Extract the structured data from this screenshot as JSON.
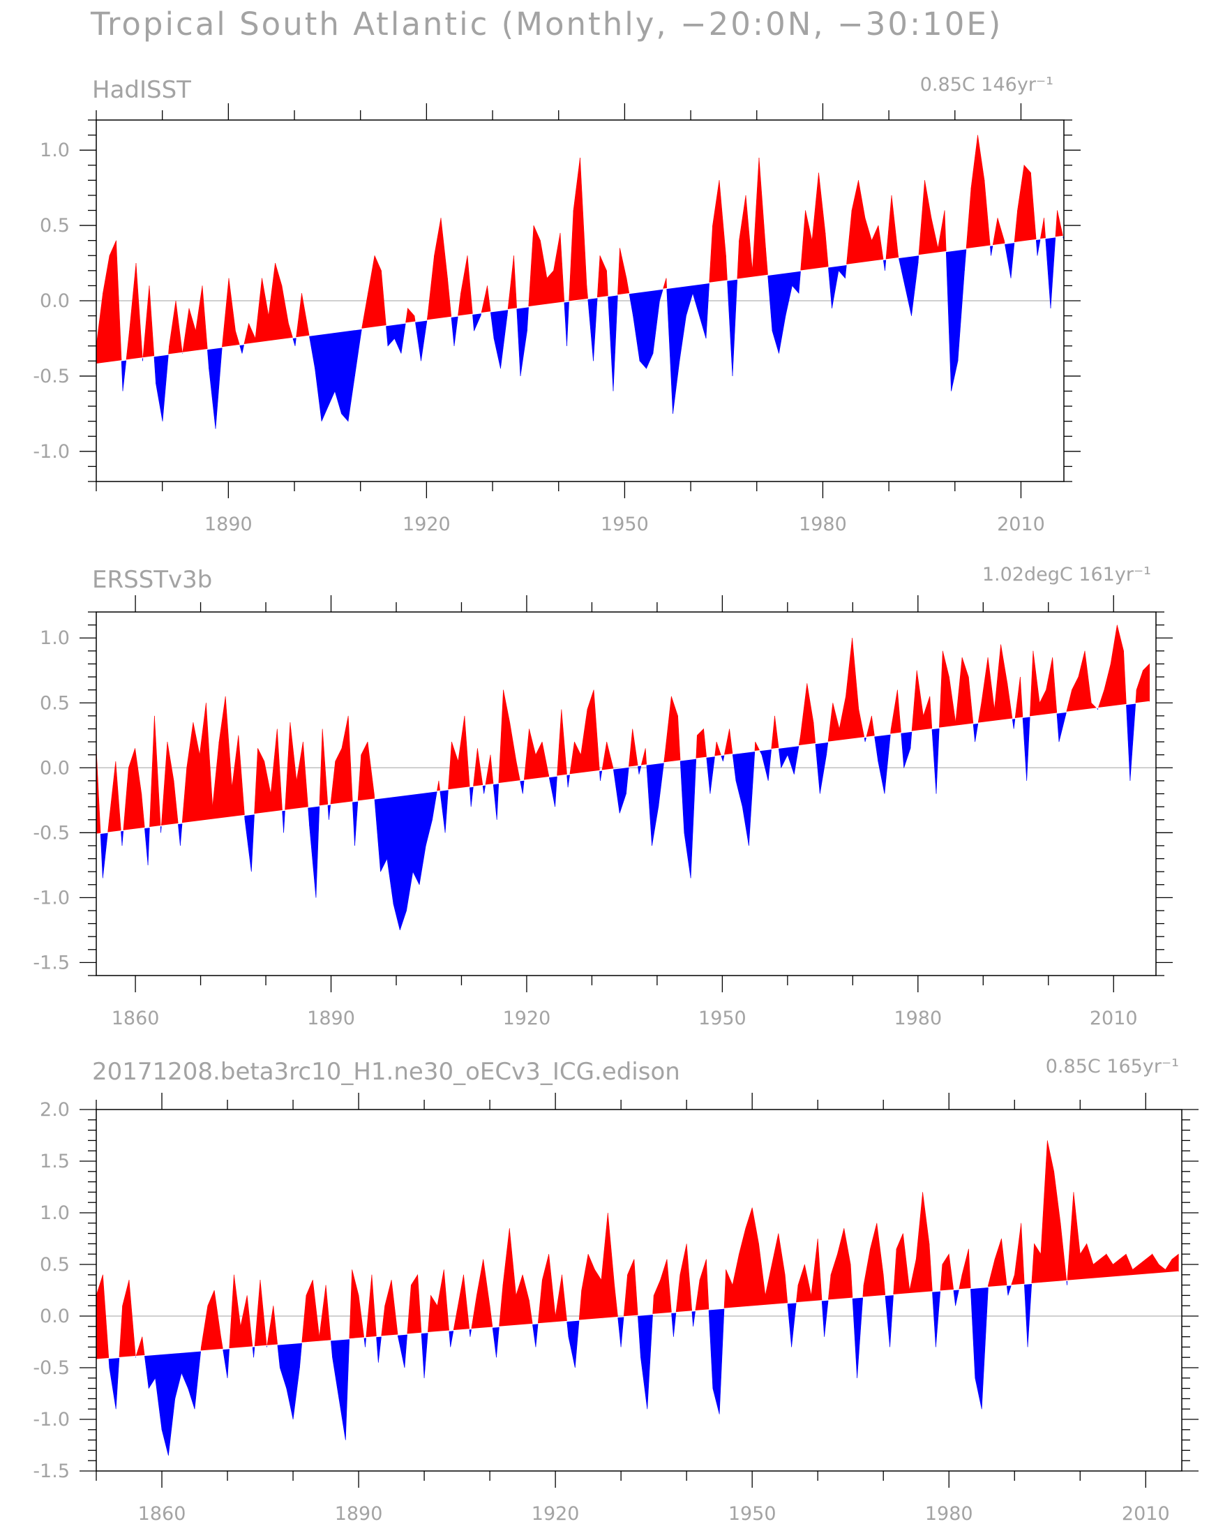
{
  "figure": {
    "title": "Tropical South Atlantic (Monthly, −20:0N, −30:10E)"
  },
  "colors": {
    "positive": "#ff0000",
    "negative": "#0000ff",
    "text": "#a3a3a3",
    "frame": "#000000",
    "zero_line": "#c0c0c0"
  },
  "chart_data": [
    {
      "type": "area",
      "title": "HadISST",
      "annotation": "0.85C 146yr⁻¹",
      "xlabel": "",
      "ylabel": "",
      "xlim": [
        1870,
        2016.5
      ],
      "ylim": [
        -1.2,
        1.2
      ],
      "xticks": [
        1890,
        1920,
        1950,
        1980,
        2010
      ],
      "yticks": [
        1.0,
        0.5,
        0.0,
        -0.5,
        -1.0
      ],
      "ytick_labels": [
        "1.0",
        "0.5",
        "0.0",
        "-0.5",
        "-1.0"
      ],
      "trend": {
        "start": [
          1870,
          -0.42
        ],
        "end": [
          2016.5,
          0.43
        ]
      },
      "series_x_range": [
        1870,
        2016.5
      ],
      "anomaly_series": {
        "name": "monthly SST anomaly",
        "step_years": 1,
        "values": [
          -0.3,
          0.05,
          0.3,
          0.4,
          -0.6,
          -0.2,
          0.25,
          -0.4,
          0.1,
          -0.55,
          -0.8,
          -0.3,
          0.0,
          -0.35,
          -0.05,
          -0.2,
          0.1,
          -0.45,
          -0.85,
          -0.3,
          0.15,
          -0.2,
          -0.35,
          -0.15,
          -0.25,
          0.15,
          -0.1,
          0.25,
          0.1,
          -0.15,
          -0.3,
          0.05,
          -0.2,
          -0.45,
          -0.8,
          -0.7,
          -0.6,
          -0.75,
          -0.8,
          -0.5,
          -0.2,
          0.05,
          0.3,
          0.2,
          -0.3,
          -0.25,
          -0.35,
          -0.05,
          -0.1,
          -0.4,
          -0.1,
          0.3,
          0.55,
          0.15,
          -0.3,
          0.05,
          0.3,
          -0.2,
          -0.1,
          0.1,
          -0.25,
          -0.45,
          -0.1,
          0.3,
          -0.5,
          -0.2,
          0.5,
          0.4,
          0.15,
          0.2,
          0.45,
          -0.3,
          0.6,
          0.95,
          0.1,
          -0.4,
          0.3,
          0.2,
          -0.6,
          0.35,
          0.15,
          -0.1,
          -0.4,
          -0.45,
          -0.35,
          0.0,
          0.15,
          -0.75,
          -0.4,
          -0.1,
          0.05,
          -0.1,
          -0.25,
          0.5,
          0.8,
          0.3,
          -0.5,
          0.4,
          0.7,
          0.2,
          0.95,
          0.35,
          -0.2,
          -0.35,
          -0.1,
          0.1,
          0.05,
          0.6,
          0.4,
          0.85,
          0.45,
          -0.05,
          0.2,
          0.15,
          0.6,
          0.8,
          0.55,
          0.4,
          0.5,
          0.2,
          0.7,
          0.3,
          0.1,
          -0.1,
          0.25,
          0.8,
          0.55,
          0.35,
          0.6,
          -0.6,
          -0.4,
          0.2,
          0.75,
          1.1,
          0.8,
          0.3,
          0.55,
          0.4,
          0.15,
          0.6,
          0.9,
          0.85,
          0.3,
          0.55,
          -0.05,
          0.6,
          0.4
        ]
      }
    },
    {
      "type": "area",
      "title": "ERSSTv3b",
      "annotation": "1.02degC 161yr⁻¹",
      "xlabel": "",
      "ylabel": "",
      "xlim": [
        1854,
        2016.5
      ],
      "ylim": [
        -1.6,
        1.2
      ],
      "xticks": [
        1860,
        1890,
        1920,
        1950,
        1980,
        2010
      ],
      "yticks": [
        1.0,
        0.5,
        0.0,
        -0.5,
        -1.0,
        -1.5
      ],
      "ytick_labels": [
        "1.0",
        "0.5",
        "0.0",
        "-0.5",
        "-1.0",
        "-1.5"
      ],
      "trend": {
        "start": [
          1854,
          -0.51
        ],
        "end": [
          2015.5,
          0.51
        ]
      },
      "series_x_range": [
        1854,
        2015.5
      ],
      "anomaly_series": {
        "name": "monthly SST anomaly",
        "step_years": 1,
        "values": [
          0.15,
          -0.85,
          -0.4,
          0.05,
          -0.6,
          0.0,
          0.15,
          -0.2,
          -0.75,
          0.4,
          -0.5,
          0.2,
          -0.1,
          -0.6,
          0.0,
          0.35,
          0.1,
          0.5,
          -0.3,
          0.2,
          0.55,
          -0.15,
          0.25,
          -0.4,
          -0.8,
          0.15,
          0.05,
          -0.2,
          0.3,
          -0.5,
          0.35,
          -0.1,
          0.2,
          -0.45,
          -1.0,
          0.3,
          -0.4,
          0.05,
          0.15,
          0.4,
          -0.6,
          0.1,
          0.2,
          -0.2,
          -0.8,
          -0.7,
          -1.05,
          -1.25,
          -1.1,
          -0.8,
          -0.9,
          -0.6,
          -0.4,
          -0.1,
          -0.5,
          0.2,
          0.05,
          0.4,
          -0.3,
          0.15,
          -0.2,
          0.1,
          -0.4,
          0.6,
          0.35,
          0.05,
          -0.2,
          0.3,
          0.1,
          0.2,
          -0.05,
          -0.3,
          0.45,
          -0.15,
          0.2,
          0.1,
          0.45,
          0.6,
          -0.1,
          0.2,
          0.0,
          -0.35,
          -0.2,
          0.3,
          -0.05,
          0.15,
          -0.6,
          -0.3,
          0.1,
          0.55,
          0.4,
          -0.5,
          -0.85,
          0.25,
          0.3,
          -0.2,
          0.2,
          0.05,
          0.3,
          -0.1,
          -0.3,
          -0.6,
          0.2,
          0.1,
          -0.1,
          0.4,
          0.0,
          0.1,
          -0.05,
          0.25,
          0.65,
          0.35,
          -0.2,
          0.1,
          0.5,
          0.3,
          0.55,
          1.0,
          0.45,
          0.2,
          0.4,
          0.05,
          -0.2,
          0.3,
          0.6,
          0.0,
          0.15,
          0.75,
          0.4,
          0.55,
          -0.2,
          0.9,
          0.7,
          0.35,
          0.85,
          0.7,
          0.2,
          0.5,
          0.85,
          0.45,
          0.95,
          0.65,
          0.3,
          0.7,
          -0.1,
          0.9,
          0.5,
          0.6,
          0.85,
          0.2,
          0.4,
          0.6,
          0.7,
          0.9,
          0.5,
          0.45,
          0.6,
          0.8,
          1.1,
          0.9,
          -0.1,
          0.6,
          0.75,
          0.8
        ]
      }
    },
    {
      "type": "area",
      "title": "20171208.beta3rc10_H1.ne30_oECv3_ICG.edison",
      "annotation": "0.85C 165yr⁻¹",
      "xlabel": "",
      "ylabel": "",
      "xlim": [
        1850,
        2015.5
      ],
      "ylim": [
        -1.5,
        2.0
      ],
      "xticks": [
        1860,
        1890,
        1920,
        1950,
        1980,
        2010
      ],
      "yticks": [
        2.0,
        1.5,
        1.0,
        0.5,
        0.0,
        -0.5,
        -1.0,
        -1.5
      ],
      "ytick_labels": [
        "2.0",
        "1.5",
        "1.0",
        "0.5",
        "0.0",
        "-0.5",
        "-1.0",
        "-1.5"
      ],
      "trend": {
        "start": [
          1850,
          -0.42
        ],
        "end": [
          2015,
          0.43
        ]
      },
      "series_x_range": [
        1850,
        2015
      ],
      "anomaly_series": {
        "name": "monthly SST anomaly",
        "step_years": 1,
        "values": [
          0.2,
          0.4,
          -0.5,
          -0.9,
          0.1,
          0.35,
          -0.4,
          -0.2,
          -0.7,
          -0.6,
          -1.1,
          -1.35,
          -0.8,
          -0.55,
          -0.7,
          -0.9,
          -0.3,
          0.1,
          0.25,
          -0.2,
          -0.6,
          0.4,
          -0.1,
          0.2,
          -0.4,
          0.35,
          -0.3,
          0.1,
          -0.5,
          -0.7,
          -1.0,
          -0.5,
          0.2,
          0.35,
          -0.2,
          0.3,
          -0.4,
          -0.8,
          -1.2,
          0.45,
          0.2,
          -0.3,
          0.4,
          -0.45,
          0.1,
          0.35,
          -0.2,
          -0.5,
          0.3,
          0.4,
          -0.6,
          0.2,
          0.1,
          0.45,
          -0.3,
          0.05,
          0.4,
          -0.2,
          0.2,
          0.55,
          0.1,
          -0.4,
          0.3,
          0.85,
          0.2,
          0.4,
          0.15,
          -0.3,
          0.35,
          0.6,
          0.0,
          0.4,
          -0.2,
          -0.5,
          0.25,
          0.6,
          0.45,
          0.35,
          1.0,
          0.3,
          -0.3,
          0.4,
          0.55,
          -0.4,
          -0.9,
          0.2,
          0.35,
          0.55,
          -0.2,
          0.4,
          0.7,
          -0.1,
          0.35,
          0.55,
          -0.7,
          -0.95,
          0.45,
          0.3,
          0.6,
          0.85,
          1.05,
          0.7,
          0.2,
          0.5,
          0.8,
          0.4,
          -0.3,
          0.3,
          0.5,
          0.2,
          0.75,
          -0.2,
          0.4,
          0.6,
          0.85,
          0.5,
          -0.6,
          0.3,
          0.65,
          0.9,
          0.4,
          -0.3,
          0.65,
          0.8,
          0.25,
          0.55,
          1.2,
          0.7,
          -0.3,
          0.5,
          0.6,
          0.1,
          0.4,
          0.65,
          -0.6,
          -0.9,
          0.3,
          0.55,
          0.75,
          0.2,
          0.4,
          0.9,
          -0.3,
          0.7,
          0.6,
          1.7,
          1.4,
          0.9,
          0.3,
          1.2,
          0.6,
          0.7,
          0.5,
          0.55,
          0.6,
          0.5,
          0.55,
          0.6,
          0.45,
          0.5,
          0.55,
          0.6,
          0.5,
          0.45,
          0.55,
          0.6
        ]
      }
    }
  ]
}
